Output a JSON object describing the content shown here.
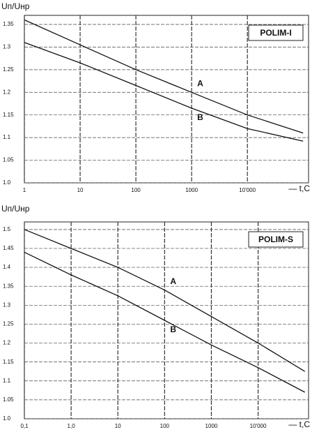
{
  "chart_data": [
    {
      "type": "line",
      "title": "POLIM-I",
      "y_label": "Uп/Uнр",
      "x_label": "— t,C",
      "log_x": true,
      "grid": true,
      "xlim": [
        1,
        125000
      ],
      "ylim": [
        1.0,
        1.37
      ],
      "xticks": [
        1,
        10,
        100,
        1000,
        {
          "value": 10000,
          "label": "10'000"
        }
      ],
      "yticks": [
        {
          "value": 1,
          "label": "1.0"
        },
        1.05,
        1.1,
        1.15,
        1.2,
        1.25,
        1.3,
        1.35
      ],
      "x": [
        1,
        10,
        100,
        1000,
        10000,
        100000
      ],
      "series": [
        {
          "name": "A",
          "color": "#111111",
          "values": [
            1.36,
            1.305,
            1.25,
            1.2,
            1.15,
            1.11
          ]
        },
        {
          "name": "B",
          "color": "#111111",
          "values": [
            1.31,
            1.265,
            1.215,
            1.165,
            1.12,
            1.092
          ]
        }
      ]
    },
    {
      "type": "line",
      "title": "POLIM-S",
      "y_label": "Uп/Uнр",
      "x_label": "— t,C",
      "log_x": true,
      "grid": true,
      "xlim": [
        0.1,
        120000
      ],
      "ylim": [
        1.0,
        1.52
      ],
      "xticks": [
        {
          "value": 0.1,
          "label": "0,1"
        },
        {
          "value": 1,
          "label": "1,0"
        },
        10,
        100,
        1000,
        {
          "value": 10000,
          "label": "10'000"
        }
      ],
      "yticks": [
        {
          "value": 1,
          "label": "1.0"
        },
        1.05,
        1.1,
        1.15,
        1.2,
        1.25,
        1.3,
        1.35,
        1.4,
        1.45,
        1.5
      ],
      "x": [
        0.1,
        1,
        10,
        100,
        1000,
        10000,
        100000
      ],
      "series": [
        {
          "name": "A",
          "color": "#111111",
          "values": [
            1.5,
            1.45,
            1.4,
            1.34,
            1.27,
            1.2,
            1.125
          ]
        },
        {
          "name": "B",
          "color": "#111111",
          "values": [
            1.44,
            1.38,
            1.325,
            1.26,
            1.195,
            1.135,
            1.07
          ]
        }
      ]
    }
  ]
}
